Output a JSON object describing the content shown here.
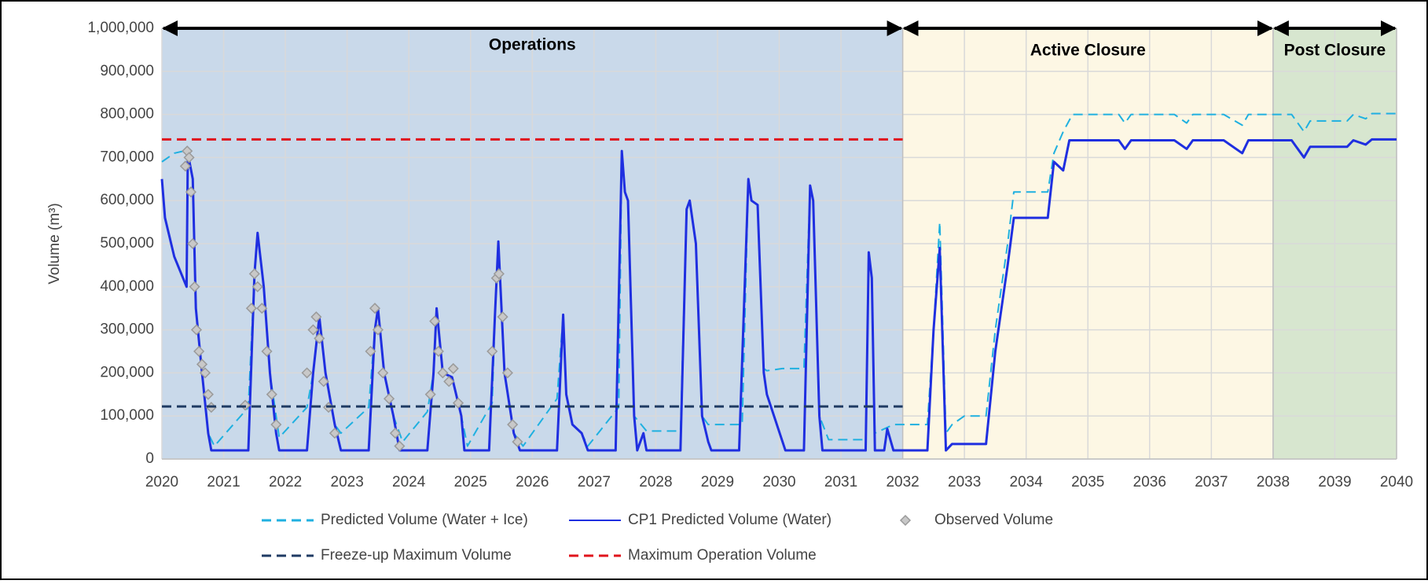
{
  "chart_data": {
    "type": "line",
    "y_label": "Volume (m³)",
    "xlim": [
      2020,
      2040
    ],
    "xticks": [
      2020,
      2021,
      2022,
      2023,
      2024,
      2025,
      2026,
      2027,
      2028,
      2029,
      2030,
      2031,
      2032,
      2033,
      2034,
      2035,
      2036,
      2037,
      2038,
      2039,
      2040
    ],
    "ylim": [
      0,
      1000000
    ],
    "yticks": [
      0,
      {
        "value": 100000,
        "label": "100,000"
      },
      {
        "value": 200000,
        "label": "200,000"
      },
      {
        "value": 300000,
        "label": "300,000"
      },
      {
        "value": 400000,
        "label": "400,000"
      },
      {
        "value": 500000,
        "label": "500,000"
      },
      {
        "value": 600000,
        "label": "600,000"
      },
      {
        "value": 700000,
        "label": "700,000"
      },
      {
        "value": 800000,
        "label": "800,000"
      },
      {
        "value": 900000,
        "label": "900,000"
      },
      {
        "value": 1000000,
        "label": "1,000,000"
      }
    ],
    "grid": true,
    "phases": [
      {
        "label": "Operations",
        "start": 2020,
        "end": 2032,
        "color": "#c9d9ea"
      },
      {
        "label": "Active Closure",
        "start": 2032,
        "end": 2038,
        "color": "#fdf7e4"
      },
      {
        "label": "Post Closure",
        "start": 2038,
        "end": 2040,
        "color": "#d7e6cf"
      }
    ],
    "series": [
      {
        "name": "Predicted Volume (Water + Ice)",
        "type": "line",
        "dash": "dashed",
        "color": "#1fb0e0",
        "width": 2,
        "x": [
          2020,
          2020.2,
          2020.35,
          2020.42,
          2020.5,
          2020.55,
          2020.65,
          2020.75,
          2020.85,
          2021.4,
          2021.5,
          2021.55,
          2021.65,
          2021.75,
          2021.9,
          2022.35,
          2022.45,
          2022.55,
          2022.65,
          2022.8,
          2022.9,
          2023.35,
          2023.45,
          2023.5,
          2023.6,
          2023.75,
          2023.9,
          2024.3,
          2024.4,
          2024.45,
          2024.55,
          2024.7,
          2024.85,
          2024.95,
          2025.35,
          2025.4,
          2025.45,
          2025.55,
          2025.7,
          2025.85,
          2026.4,
          2026.5,
          2026.55,
          2026.65,
          2026.8,
          2026.9,
          2027.4,
          2027.45,
          2027.5,
          2027.55,
          2027.65,
          2027.85,
          2028.4,
          2028.5,
          2028.55,
          2028.65,
          2028.75,
          2028.85,
          2029.4,
          2029.5,
          2029.55,
          2029.65,
          2029.75,
          2029.8,
          2030.05,
          2030.4,
          2030.5,
          2030.55,
          2030.65,
          2030.8,
          2031.4,
          2031.45,
          2031.5,
          2031.55,
          2031.85,
          2032.4,
          2032.5,
          2032.6,
          2032.7,
          2032.8,
          2033.0,
          2033.35,
          2033.5,
          2033.7,
          2033.8,
          2034.35,
          2034.45,
          2034.6,
          2034.75,
          2035.5,
          2035.6,
          2035.7,
          2036.4,
          2036.6,
          2036.7,
          2037.2,
          2037.5,
          2037.6,
          2038.3,
          2038.5,
          2038.6,
          2039.2,
          2039.3,
          2039.5,
          2039.6,
          2040
        ],
        "values": [
          690000,
          710000,
          715000,
          710000,
          650000,
          350000,
          200000,
          60000,
          30000,
          120000,
          430000,
          525000,
          400000,
          200000,
          50000,
          120000,
          200000,
          330000,
          200000,
          80000,
          60000,
          120000,
          300000,
          350000,
          200000,
          100000,
          40000,
          110000,
          200000,
          350000,
          200000,
          190000,
          100000,
          30000,
          130000,
          350000,
          505000,
          200000,
          60000,
          30000,
          140000,
          335000,
          150000,
          80000,
          60000,
          30000,
          120000,
          715000,
          620000,
          600000,
          100000,
          65000,
          65000,
          580000,
          600000,
          500000,
          100000,
          80000,
          80000,
          650000,
          600000,
          590000,
          210000,
          205000,
          210000,
          210000,
          635000,
          600000,
          100000,
          45000,
          45000,
          480000,
          420000,
          60000,
          80000,
          80000,
          300000,
          550000,
          60000,
          80000,
          100000,
          100000,
          300000,
          500000,
          620000,
          620000,
          710000,
          760000,
          800000,
          800000,
          780000,
          800000,
          800000,
          780000,
          800000,
          800000,
          775000,
          800000,
          800000,
          760000,
          785000,
          785000,
          800000,
          790000,
          802000,
          802000
        ]
      },
      {
        "name": "CP1 Predicted Volume (Water)",
        "type": "line",
        "dash": "solid",
        "color": "#1f2fe0",
        "width": 3,
        "x": [
          2020,
          2020.05,
          2020.2,
          2020.4,
          2020.42,
          2020.5,
          2020.55,
          2020.65,
          2020.75,
          2020.8,
          2021.4,
          2021.5,
          2021.55,
          2021.65,
          2021.75,
          2021.85,
          2021.9,
          2022.35,
          2022.45,
          2022.55,
          2022.65,
          2022.8,
          2022.9,
          2023.35,
          2023.45,
          2023.5,
          2023.6,
          2023.75,
          2023.85,
          2024.3,
          2024.4,
          2024.45,
          2024.55,
          2024.7,
          2024.85,
          2024.9,
          2025.3,
          2025.4,
          2025.45,
          2025.55,
          2025.7,
          2025.8,
          2026.4,
          2026.5,
          2026.55,
          2026.65,
          2026.8,
          2026.9,
          2027.35,
          2027.45,
          2027.5,
          2027.55,
          2027.65,
          2027.7,
          2027.8,
          2027.85,
          2028.4,
          2028.5,
          2028.55,
          2028.65,
          2028.75,
          2028.85,
          2028.9,
          2029.35,
          2029.5,
          2029.55,
          2029.65,
          2029.75,
          2029.8,
          2030.1,
          2030.4,
          2030.5,
          2030.55,
          2030.65,
          2030.7,
          2031.4,
          2031.45,
          2031.5,
          2031.55,
          2031.7,
          2031.75,
          2031.85,
          2032.4,
          2032.5,
          2032.6,
          2032.7,
          2032.8,
          2033.35,
          2033.5,
          2033.7,
          2033.8,
          2034.35,
          2034.45,
          2034.6,
          2034.7,
          2035.5,
          2035.6,
          2035.7,
          2036.4,
          2036.6,
          2036.7,
          2037.2,
          2037.5,
          2037.6,
          2038.3,
          2038.5,
          2038.6,
          2039.2,
          2039.3,
          2039.5,
          2039.6,
          2040
        ],
        "values": [
          650000,
          560000,
          470000,
          400000,
          710000,
          650000,
          350000,
          200000,
          60000,
          20000,
          20000,
          430000,
          525000,
          400000,
          200000,
          60000,
          20000,
          20000,
          200000,
          330000,
          200000,
          80000,
          20000,
          20000,
          300000,
          350000,
          200000,
          100000,
          20000,
          20000,
          200000,
          350000,
          200000,
          190000,
          100000,
          20000,
          20000,
          350000,
          505000,
          200000,
          60000,
          20000,
          20000,
          335000,
          150000,
          80000,
          60000,
          20000,
          20000,
          715000,
          620000,
          600000,
          100000,
          20000,
          60000,
          20000,
          20000,
          580000,
          600000,
          500000,
          100000,
          40000,
          20000,
          20000,
          650000,
          600000,
          590000,
          200000,
          150000,
          20000,
          20000,
          635000,
          600000,
          100000,
          20000,
          20000,
          480000,
          420000,
          20000,
          20000,
          70000,
          20000,
          20000,
          300000,
          490000,
          20000,
          35000,
          35000,
          250000,
          450000,
          560000,
          560000,
          690000,
          670000,
          740000,
          740000,
          720000,
          740000,
          740000,
          720000,
          740000,
          740000,
          710000,
          740000,
          740000,
          700000,
          725000,
          725000,
          740000,
          730000,
          742000,
          742000
        ]
      },
      {
        "name": "Observed Volume",
        "type": "scatter",
        "color": "#9a9a9a",
        "x": [
          2020.38,
          2020.41,
          2020.44,
          2020.47,
          2020.5,
          2020.53,
          2020.56,
          2020.6,
          2020.65,
          2020.7,
          2020.75,
          2020.8,
          2021.35,
          2021.45,
          2021.5,
          2021.55,
          2021.62,
          2021.7,
          2021.78,
          2021.85,
          2022.35,
          2022.45,
          2022.5,
          2022.55,
          2022.62,
          2022.7,
          2022.8,
          2023.38,
          2023.45,
          2023.5,
          2023.58,
          2023.68,
          2023.78,
          2023.85,
          2024.35,
          2024.42,
          2024.48,
          2024.55,
          2024.65,
          2024.72,
          2024.8,
          2025.35,
          2025.42,
          2025.46,
          2025.52,
          2025.6,
          2025.68,
          2025.76
        ],
        "values": [
          680000,
          715000,
          700000,
          620000,
          500000,
          400000,
          300000,
          250000,
          220000,
          200000,
          150000,
          120000,
          125000,
          350000,
          430000,
          400000,
          350000,
          250000,
          150000,
          80000,
          200000,
          300000,
          330000,
          280000,
          180000,
          120000,
          60000,
          250000,
          350000,
          300000,
          200000,
          140000,
          60000,
          30000,
          150000,
          320000,
          250000,
          200000,
          180000,
          210000,
          130000,
          250000,
          420000,
          430000,
          330000,
          200000,
          80000,
          40000
        ]
      },
      {
        "name": "Freeze-up Maximum Volume",
        "type": "line",
        "dash": "dashed",
        "color": "#1f3b63",
        "width": 3,
        "x": [
          2020,
          2032
        ],
        "values": [
          122000,
          122000
        ]
      },
      {
        "name": "Maximum Operation Volume",
        "type": "line",
        "dash": "dashed",
        "color": "#e0141c",
        "width": 3,
        "x": [
          2020,
          2032
        ],
        "values": [
          742000,
          742000
        ]
      }
    ]
  }
}
